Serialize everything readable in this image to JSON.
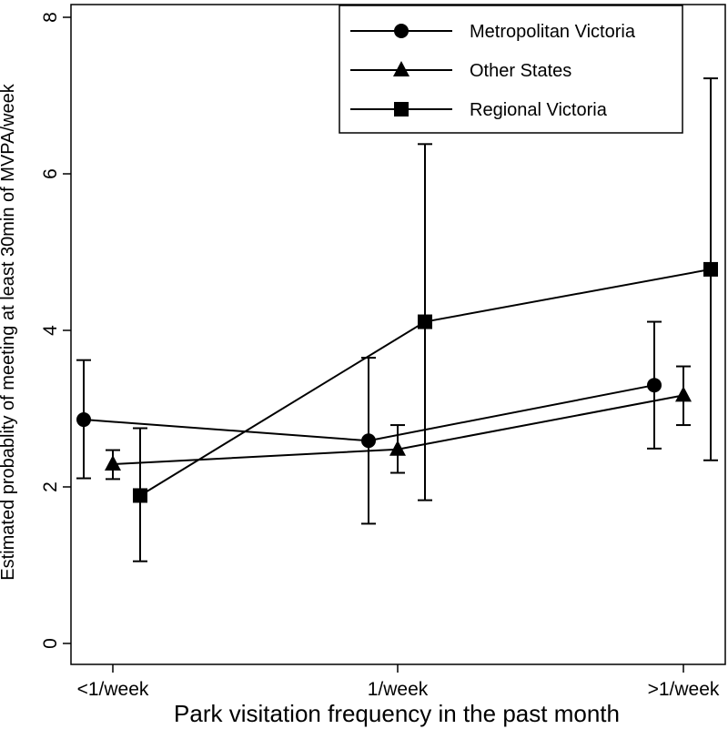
{
  "chart_data": {
    "type": "line",
    "xlabel": "Park visitation frequency in the past month",
    "ylabel": "Estimated probablity of meeting at least 30min of MVPA/week",
    "categories": [
      "<1/week",
      "1/week",
      ">1/week"
    ],
    "ylim": [
      0,
      8
    ],
    "yticks": [
      "0",
      "2",
      "4",
      "6",
      "8"
    ],
    "grid": false,
    "legend_position": "top-right",
    "series": [
      {
        "name": "Metropolitan Victoria",
        "marker": "circle",
        "values": [
          2.86,
          2.59,
          3.3
        ],
        "ci_low": [
          2.11,
          1.53,
          2.49
        ],
        "ci_high": [
          3.62,
          3.65,
          4.11
        ]
      },
      {
        "name": "Other States",
        "marker": "triangle",
        "values": [
          2.29,
          2.48,
          3.17
        ],
        "ci_low": [
          2.1,
          2.18,
          2.79
        ],
        "ci_high": [
          2.47,
          2.79,
          3.54
        ]
      },
      {
        "name": "Regional Victoria",
        "marker": "square",
        "values": [
          1.89,
          4.11,
          4.78
        ],
        "ci_low": [
          1.05,
          1.83,
          2.34
        ],
        "ci_high": [
          2.75,
          6.38,
          7.22
        ]
      }
    ]
  }
}
